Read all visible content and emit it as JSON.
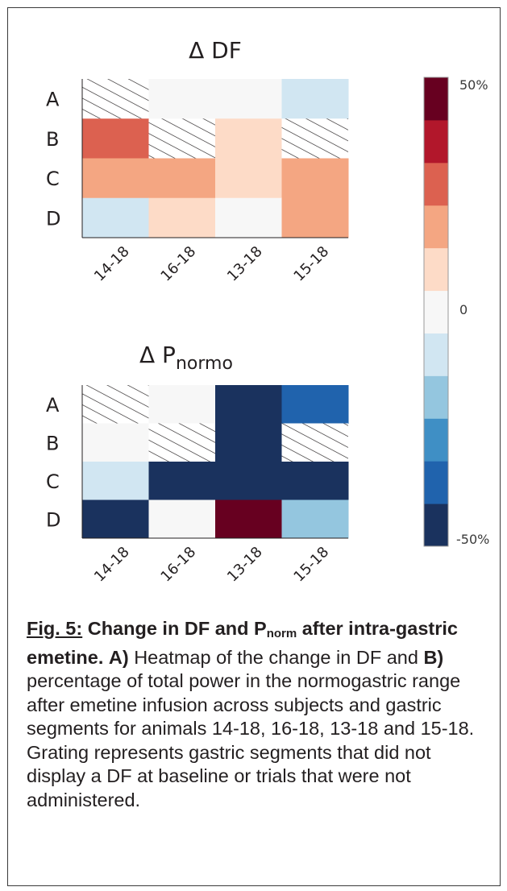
{
  "chart_data": [
    {
      "type": "heatmap",
      "title": "Δ DF",
      "rows": [
        "A",
        "B",
        "C",
        "D"
      ],
      "columns": [
        "14-18",
        "16-18",
        "13-18",
        "15-18"
      ],
      "values": [
        [
          null,
          0,
          0,
          -10
        ],
        [
          30,
          null,
          10,
          null
        ],
        [
          20,
          20,
          10,
          20
        ],
        [
          -10,
          10,
          0,
          20
        ]
      ],
      "null_meaning": "hatched (no DF at baseline or trial not administered)"
    },
    {
      "type": "heatmap",
      "title_main": "Δ P",
      "title_sub": "normo",
      "rows": [
        "A",
        "B",
        "C",
        "D"
      ],
      "columns": [
        "14-18",
        "16-18",
        "13-18",
        "15-18"
      ],
      "values": [
        [
          null,
          0,
          -50,
          -40
        ],
        [
          0,
          null,
          -50,
          null
        ],
        [
          -10,
          -50,
          -50,
          -50
        ],
        [
          -50,
          0,
          50,
          -20
        ]
      ],
      "null_meaning": "hatched (no DF at baseline or trial not administered)"
    }
  ],
  "colorbar": {
    "vmin": -50,
    "vmax": 50,
    "label_top": "50%",
    "label_mid": "0",
    "label_bottom": "-50%",
    "colors": [
      "#1a325e",
      "#2063ad",
      "#3f8fc5",
      "#94c6df",
      "#d1e6f2",
      "#f7f7f7",
      "#fddbc7",
      "#f4a682",
      "#dc6150",
      "#b2172b",
      "#670020"
    ]
  },
  "caption": {
    "fig_label": "Fig. 5:",
    "heading_pre": " Change in DF and P",
    "heading_sub": "norm",
    "heading_post": " after intra-gastric emetine.",
    "label_a": "A)",
    "text_a": " Heatmap of the change in DF and ",
    "label_b": "B)",
    "text_b": " percentage of total power in the normogastric range after emetine infusion across subjects and gastric segments for animals 14-18, 16-18, 13-18 and 15-18. Grating represents gastric segments that did not display a DF at baseline or trials that were not administered."
  }
}
